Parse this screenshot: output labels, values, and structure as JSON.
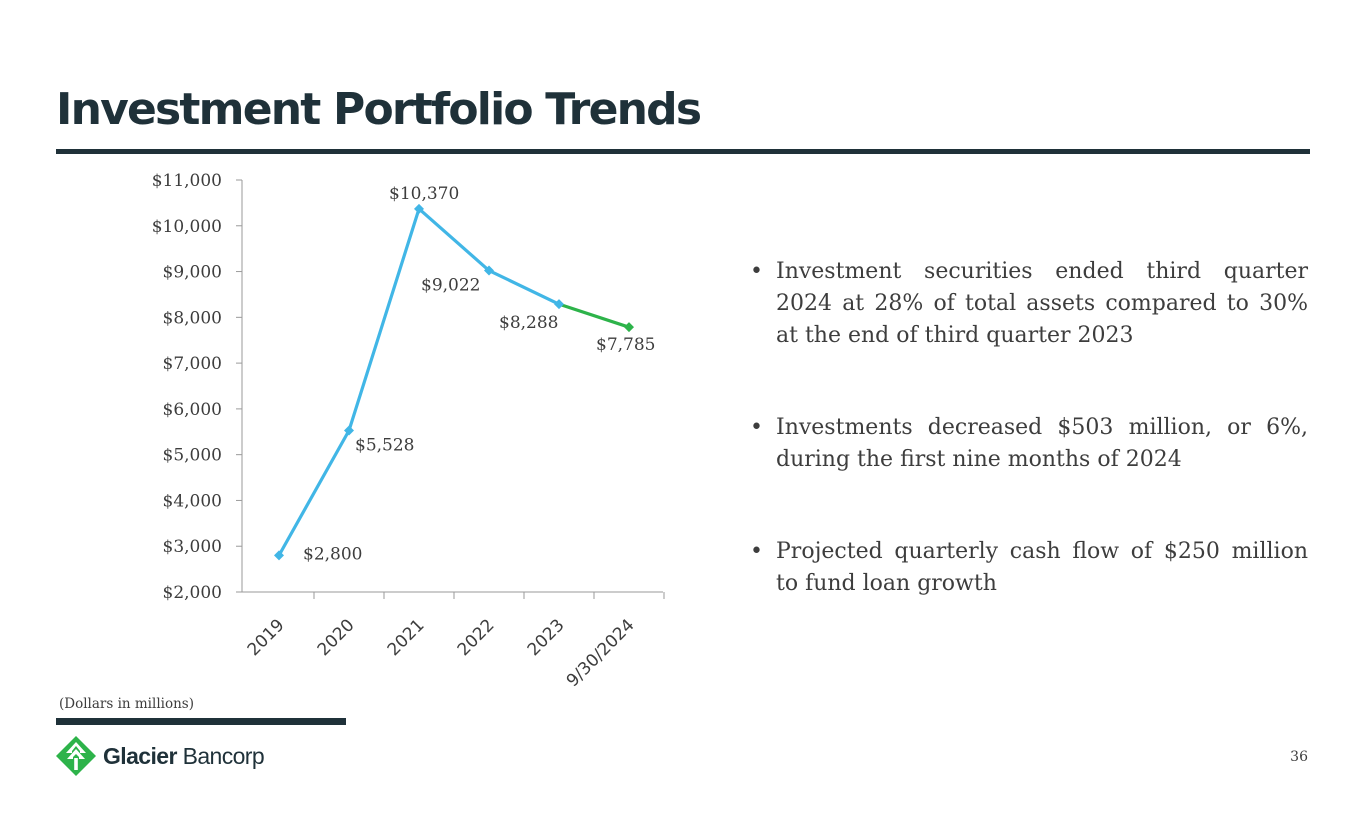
{
  "slide": {
    "title": "Investment Portfolio Trends",
    "note": "(Dollars in millions)",
    "page_number": "36"
  },
  "logo": {
    "name_bold": "Glacier",
    "name_regular": "Bancorp",
    "icon": "tree-logo-icon",
    "color": "#2db34a"
  },
  "bullets": [
    "Investment securities ended third quarter 2024 at 28% of total assets compared to 30% at the end of third quarter 2023",
    "Investments decreased $503 million, or 6%, during the first nine months of 2024",
    "Projected quarterly cash flow of $250 million to fund loan growth"
  ],
  "chart_data": {
    "type": "line",
    "title": "",
    "xlabel": "",
    "ylabel": "",
    "categories": [
      "2019",
      "2020",
      "2021",
      "2022",
      "2023",
      "9/30/2024"
    ],
    "values": [
      2800,
      5528,
      10370,
      9022,
      8288,
      7785
    ],
    "data_labels": [
      "$2,800",
      "$5,528",
      "$10,370",
      "$9,022",
      "$8,288",
      "$7,785"
    ],
    "ylim": [
      2000,
      11000
    ],
    "y_ticks": [
      2000,
      3000,
      4000,
      5000,
      6000,
      7000,
      8000,
      9000,
      10000,
      11000
    ],
    "y_tick_labels": [
      "$2,000",
      "$3,000",
      "$4,000",
      "$5,000",
      "$6,000",
      "$7,000",
      "$8,000",
      "$9,000",
      "$10,000",
      "$11,000"
    ],
    "grid": false,
    "series_color": "#41b6e6",
    "highlight_color": "#2db34a",
    "highlight_last_segment": true,
    "axis_color": "#9a9a9a"
  }
}
